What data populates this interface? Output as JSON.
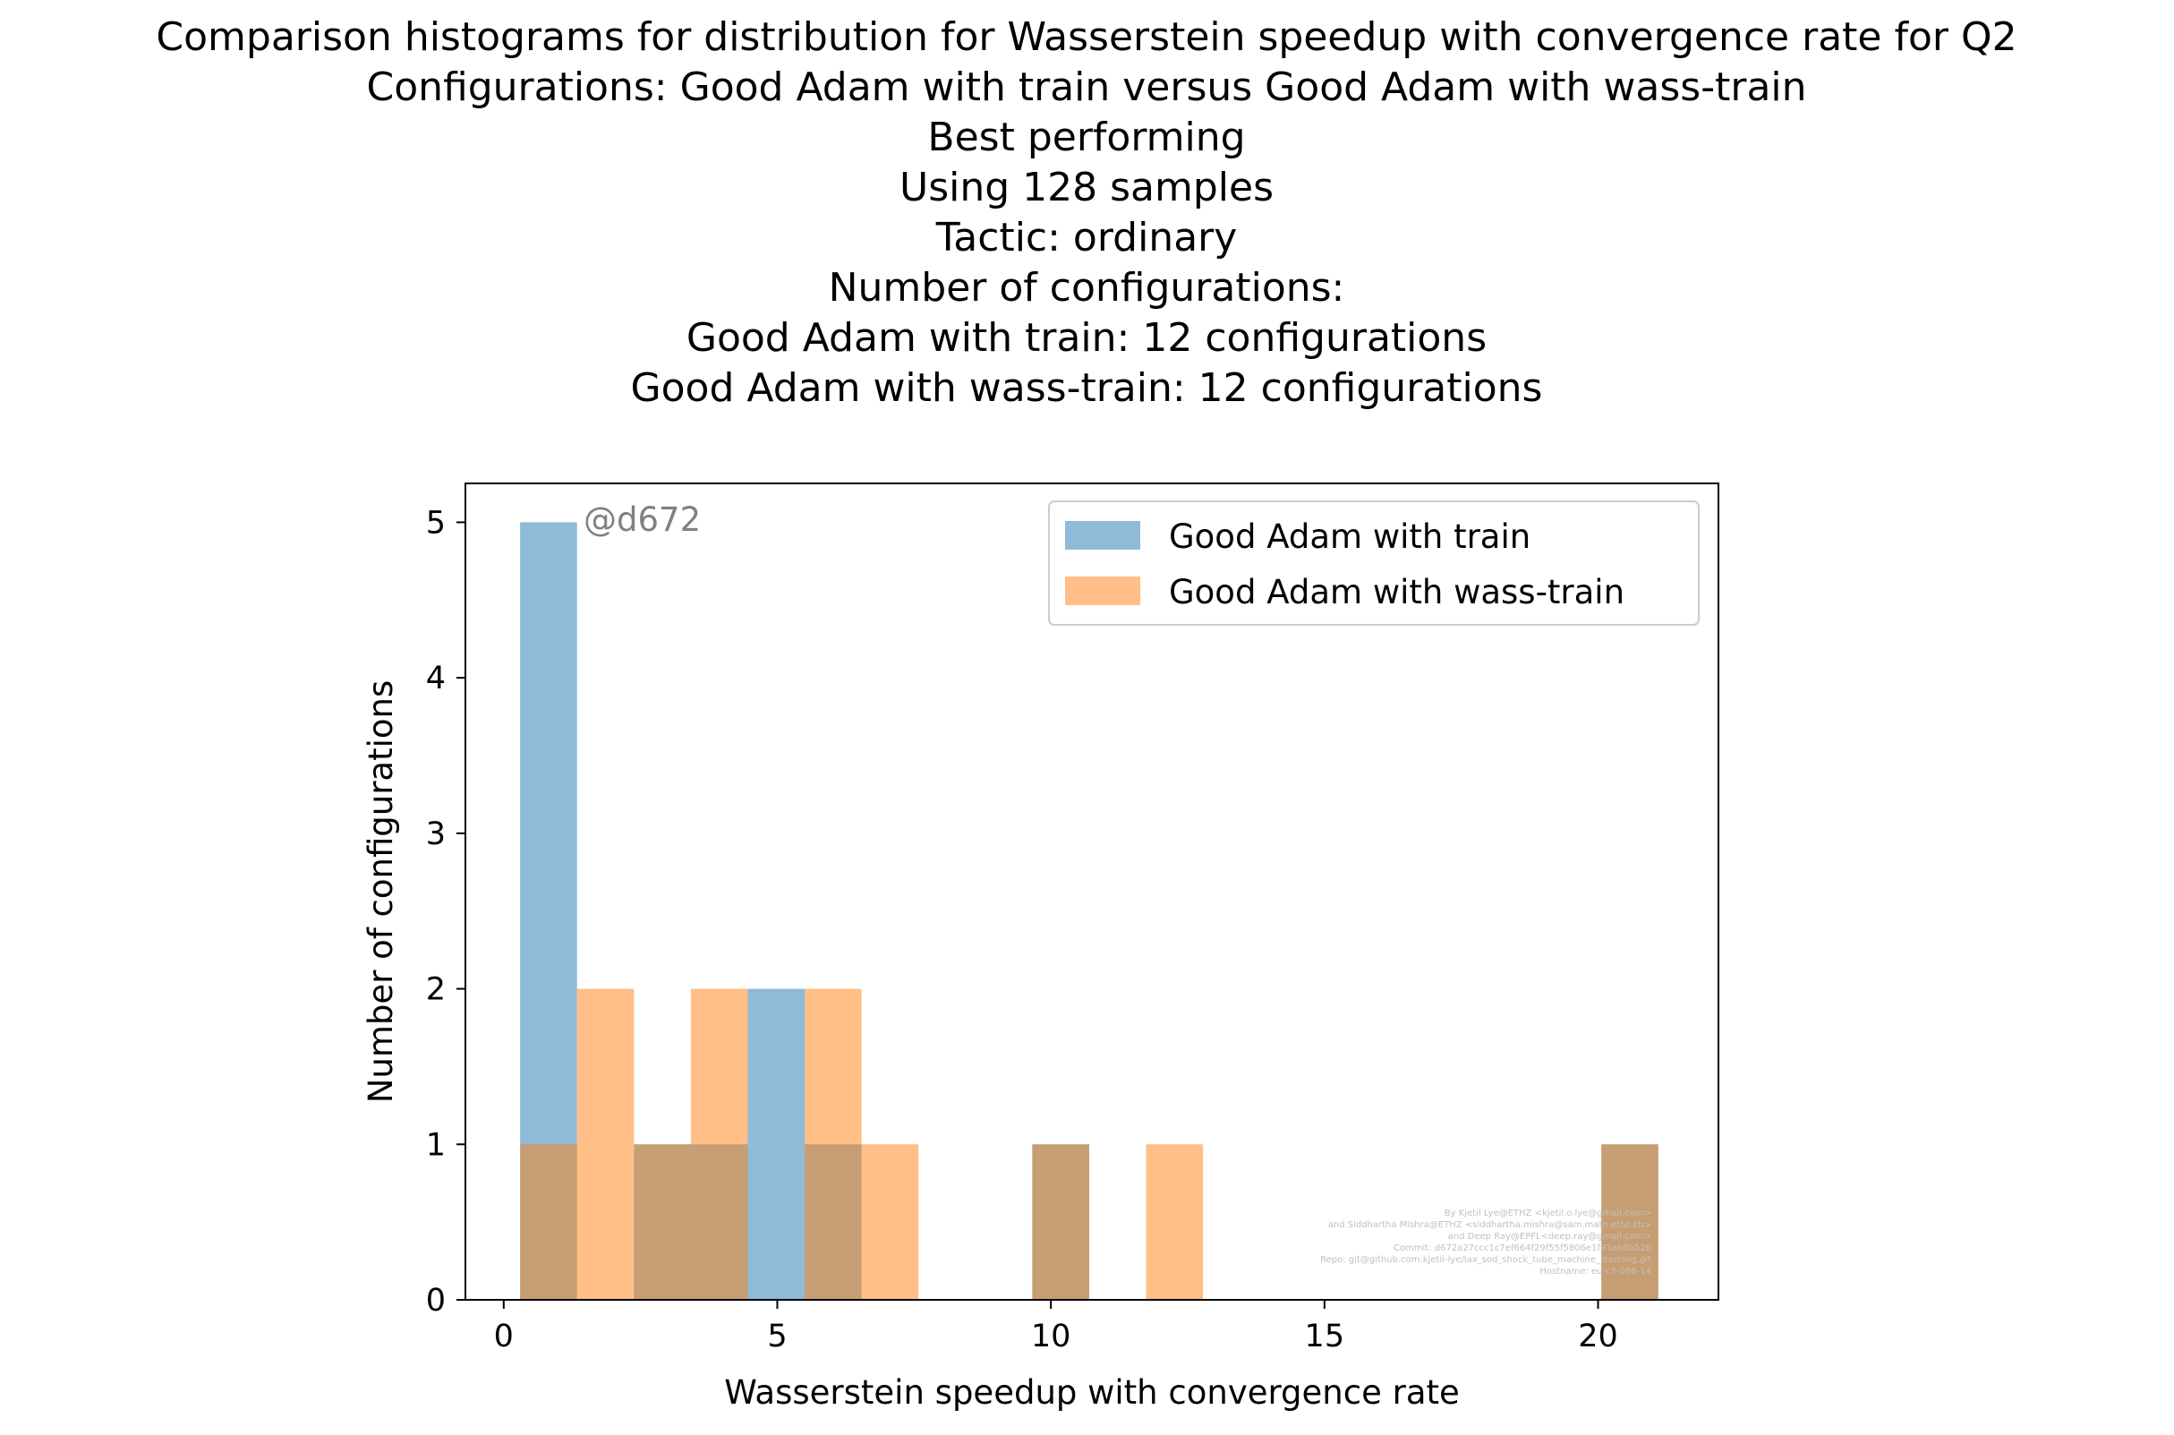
{
  "chart_data": {
    "type": "bar",
    "title_lines": [
      "Comparison histograms for distribution for Wasserstein speedup with convergence rate for Q2",
      "Configurations: Good Adam with train versus Good Adam with wass-train",
      "Best performing",
      "Using 128 samples",
      "Tactic: ordinary",
      "Number of configurations:",
      "Good Adam with train: 12 configurations",
      "Good Adam with wass-train: 12 configurations"
    ],
    "xlabel": "Wasserstein speedup with convergence rate",
    "ylabel": "Number of configurations",
    "xlim": [
      -0.7,
      22.2
    ],
    "ylim": [
      0,
      5.25
    ],
    "xticks": [
      0,
      5,
      10,
      15,
      20
    ],
    "yticks": [
      0,
      1,
      2,
      3,
      4,
      5
    ],
    "bin_edges": [
      0.3,
      1.34,
      2.38,
      3.42,
      4.46,
      5.5,
      6.54,
      7.58,
      8.62,
      9.66,
      10.7,
      11.74,
      12.78,
      13.82,
      14.86,
      15.9,
      16.94,
      17.98,
      19.02,
      20.06,
      21.1
    ],
    "series": [
      {
        "name": "Good Adam with train",
        "color": "#1f77b4",
        "values": [
          5,
          0,
          1,
          1,
          2,
          1,
          0,
          0,
          0,
          1,
          0,
          0,
          0,
          0,
          0,
          0,
          0,
          0,
          0,
          1
        ]
      },
      {
        "name": "Good Adam with wass-train",
        "color": "#ff7f0e",
        "values": [
          1,
          2,
          1,
          2,
          0,
          2,
          1,
          0,
          0,
          1,
          0,
          1,
          0,
          0,
          0,
          0,
          0,
          0,
          0,
          1
        ]
      }
    ],
    "bar_alpha": 0.5,
    "legend_position": "top-right",
    "annotation": "@d672",
    "credit_lines": [
      "By Kjetil Lye@ETHZ <kjetil.o.lye@gmail.com>",
      "and Siddhartha Mishra@ETHZ <siddhartha.mishra@sam.math.ethz.ch>",
      "and Deep Ray@EPFL<deep.ray@gmail.com>",
      "Commit: d672a27ccc1c7ef664f29f55f5806e1f93ab6b52b",
      "Repo: git@github.com:kjetil-lye/lax_sod_shock_tube_machine_learning.git",
      "Hostname: eu-c7-056-14"
    ]
  }
}
